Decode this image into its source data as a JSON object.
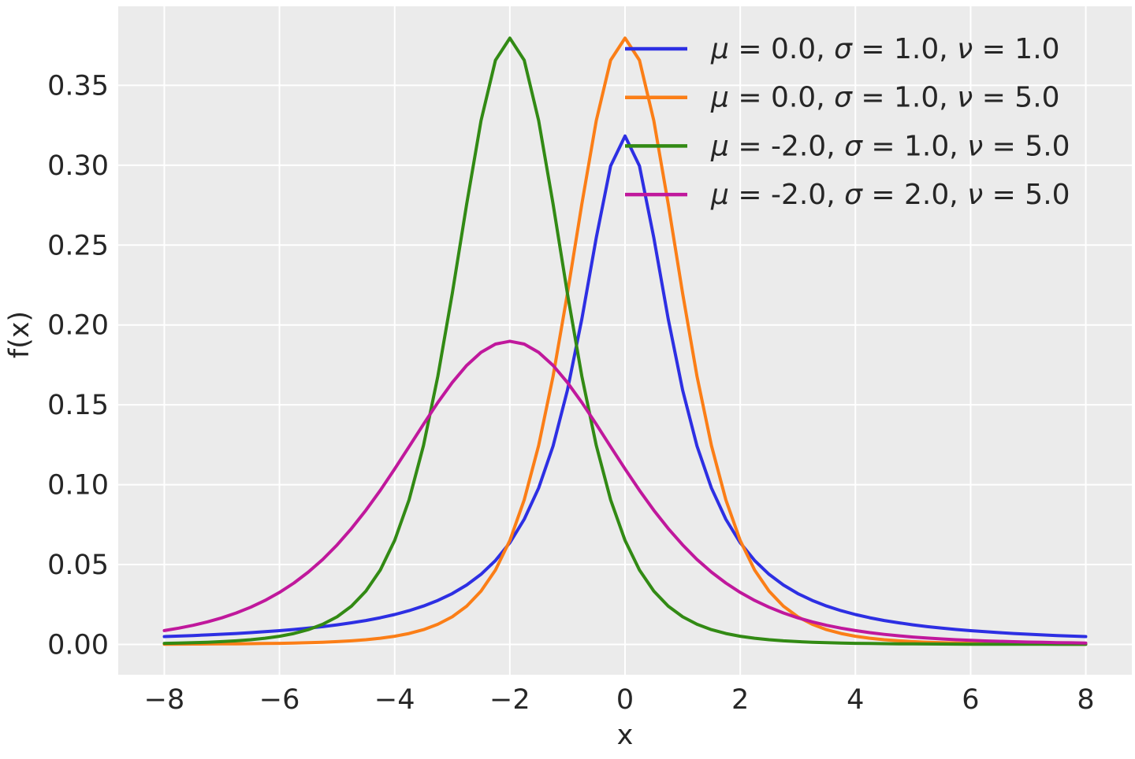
{
  "figure": {
    "background": "#ffffff"
  },
  "axes": {
    "background": "#ebebeb",
    "grid_color": "#ffffff",
    "text_color": "#262626"
  },
  "chart_data": {
    "type": "line",
    "title": "",
    "xlabel": "x",
    "ylabel": "f(x)",
    "xlim": [
      -8.8,
      8.8
    ],
    "ylim": [
      -0.019,
      0.3995
    ],
    "grid": true,
    "legend_position": "upper right",
    "legend_frame": false,
    "x_ticks": {
      "values": [
        -8,
        -6,
        -4,
        -2,
        0,
        2,
        4,
        6,
        8
      ],
      "labels": [
        "−8",
        "−6",
        "−4",
        "−2",
        "0",
        "2",
        "4",
        "6",
        "8"
      ]
    },
    "y_ticks": {
      "values": [
        0.0,
        0.05,
        0.1,
        0.15,
        0.2,
        0.25,
        0.3,
        0.35
      ],
      "labels": [
        "0.00",
        "0.05",
        "0.10",
        "0.15",
        "0.20",
        "0.25",
        "0.30",
        "0.35"
      ]
    },
    "x": [
      -8,
      -7.75,
      -7.5,
      -7.25,
      -7,
      -6.75,
      -6.5,
      -6.25,
      -6,
      -5.75,
      -5.5,
      -5.25,
      -5,
      -4.75,
      -4.5,
      -4.25,
      -4,
      -3.75,
      -3.5,
      -3.25,
      -3,
      -2.75,
      -2.5,
      -2.25,
      -2,
      -1.75,
      -1.5,
      -1.25,
      -1,
      -0.75,
      -0.5,
      -0.25,
      0,
      0.25,
      0.5,
      0.75,
      1,
      1.25,
      1.5,
      1.75,
      2,
      2.25,
      2.5,
      2.75,
      3,
      3.25,
      3.5,
      3.75,
      4,
      4.25,
      4.5,
      4.75,
      5,
      5.25,
      5.5,
      5.75,
      6,
      6.25,
      6.5,
      6.75,
      7,
      7.25,
      7.5,
      7.75,
      8
    ],
    "series": [
      {
        "name": "μ = 0.0, σ = 1.0, ν = 1.0",
        "params": {
          "mu": 0.0,
          "sigma": 1.0,
          "nu": 1.0
        },
        "color": "#2d2fe3",
        "values": [
          0.0049,
          0.00521,
          0.00556,
          0.00594,
          0.00637,
          0.00684,
          0.00736,
          0.00795,
          0.0086,
          0.00934,
          0.01019,
          0.01114,
          0.01224,
          0.01351,
          0.01498,
          0.0167,
          0.01872,
          0.02113,
          0.02402,
          0.02753,
          0.03183,
          0.03718,
          0.0439,
          0.05251,
          0.06366,
          0.07835,
          0.09794,
          0.12422,
          0.15915,
          0.20372,
          0.25465,
          0.29958,
          0.31831,
          0.29958,
          0.25465,
          0.20372,
          0.15915,
          0.12422,
          0.09794,
          0.07835,
          0.06366,
          0.05251,
          0.0439,
          0.03718,
          0.03183,
          0.02753,
          0.02402,
          0.02113,
          0.01872,
          0.0167,
          0.01498,
          0.01351,
          0.01224,
          0.01114,
          0.01019,
          0.00934,
          0.0086,
          0.00795,
          0.00736,
          0.00684,
          0.00637,
          0.00594,
          0.00556,
          0.00521,
          0.0049
        ]
      },
      {
        "name": "μ = 0.0, σ = 1.0, ν = 5.0",
        "params": {
          "mu": 0.0,
          "sigma": 1.0,
          "nu": 5.0
        },
        "color": "#fb7e17",
        "values": [
          0.00014,
          0.00017,
          0.00021,
          0.00025,
          0.0003,
          0.00037,
          0.00045,
          0.00055,
          0.00069,
          0.00086,
          0.00108,
          0.00137,
          0.00176,
          0.00227,
          0.00295,
          0.00387,
          0.00512,
          0.00685,
          0.00924,
          0.01259,
          0.01729,
          0.02393,
          0.03333,
          0.04657,
          0.06509,
          0.09054,
          0.12452,
          0.16789,
          0.21968,
          0.2757,
          0.32792,
          0.36572,
          0.37961,
          0.36572,
          0.32792,
          0.2757,
          0.21968,
          0.16789,
          0.12452,
          0.09054,
          0.06509,
          0.04657,
          0.03333,
          0.02393,
          0.01729,
          0.01259,
          0.00924,
          0.00685,
          0.00512,
          0.00387,
          0.00295,
          0.00227,
          0.00176,
          0.00137,
          0.00108,
          0.00086,
          0.00069,
          0.00055,
          0.00045,
          0.00037,
          0.0003,
          0.00025,
          0.00021,
          0.00017,
          0.00014
        ]
      },
      {
        "name": "μ = -2.0, σ = 1.0, ν = 5.0",
        "params": {
          "mu": -2.0,
          "sigma": 1.0,
          "nu": 5.0
        },
        "color": "#328a14",
        "values": [
          0.00069,
          0.00086,
          0.00108,
          0.00137,
          0.00176,
          0.00227,
          0.00295,
          0.00387,
          0.00512,
          0.00685,
          0.00924,
          0.01259,
          0.01729,
          0.02393,
          0.03333,
          0.04657,
          0.06509,
          0.09054,
          0.12452,
          0.16789,
          0.21968,
          0.2757,
          0.32792,
          0.36572,
          0.37961,
          0.36572,
          0.32792,
          0.2757,
          0.21968,
          0.16789,
          0.12452,
          0.09054,
          0.06509,
          0.04657,
          0.03333,
          0.02393,
          0.01729,
          0.01259,
          0.00924,
          0.00685,
          0.00512,
          0.00387,
          0.00295,
          0.00227,
          0.00176,
          0.00137,
          0.00108,
          0.00086,
          0.00069,
          0.00055,
          0.00045,
          0.00037,
          0.0003,
          0.00025,
          0.00021,
          0.00017,
          0.00014,
          0.00012,
          0.0001,
          9e-05,
          7e-05,
          6e-05,
          5e-05,
          5e-05,
          4e-05
        ]
      },
      {
        "name": "μ = -2.0, σ = 2.0, ν = 5.0",
        "params": {
          "mu": -2.0,
          "sigma": 2.0,
          "nu": 5.0
        },
        "color": "#c0189c",
        "values": [
          0.00865,
          0.01016,
          0.01197,
          0.01411,
          0.01666,
          0.01969,
          0.02329,
          0.02754,
          0.03255,
          0.03842,
          0.04527,
          0.05319,
          0.06226,
          0.07252,
          0.08395,
          0.09645,
          0.10984,
          0.12379,
          0.13785,
          0.15146,
          0.16396,
          0.17465,
          0.18286,
          0.18803,
          0.1898,
          0.18803,
          0.18286,
          0.17465,
          0.16396,
          0.15146,
          0.13785,
          0.12379,
          0.10984,
          0.09645,
          0.08395,
          0.07252,
          0.06226,
          0.05319,
          0.04527,
          0.03842,
          0.03255,
          0.02754,
          0.02329,
          0.01969,
          0.01666,
          0.01411,
          0.01197,
          0.01016,
          0.00865,
          0.00737,
          0.00629,
          0.00539,
          0.00462,
          0.00397,
          0.00343,
          0.00296,
          0.00256,
          0.00222,
          0.00193,
          0.00169,
          0.00147,
          0.00129,
          0.00113,
          0.001,
          0.00088
        ]
      }
    ]
  }
}
